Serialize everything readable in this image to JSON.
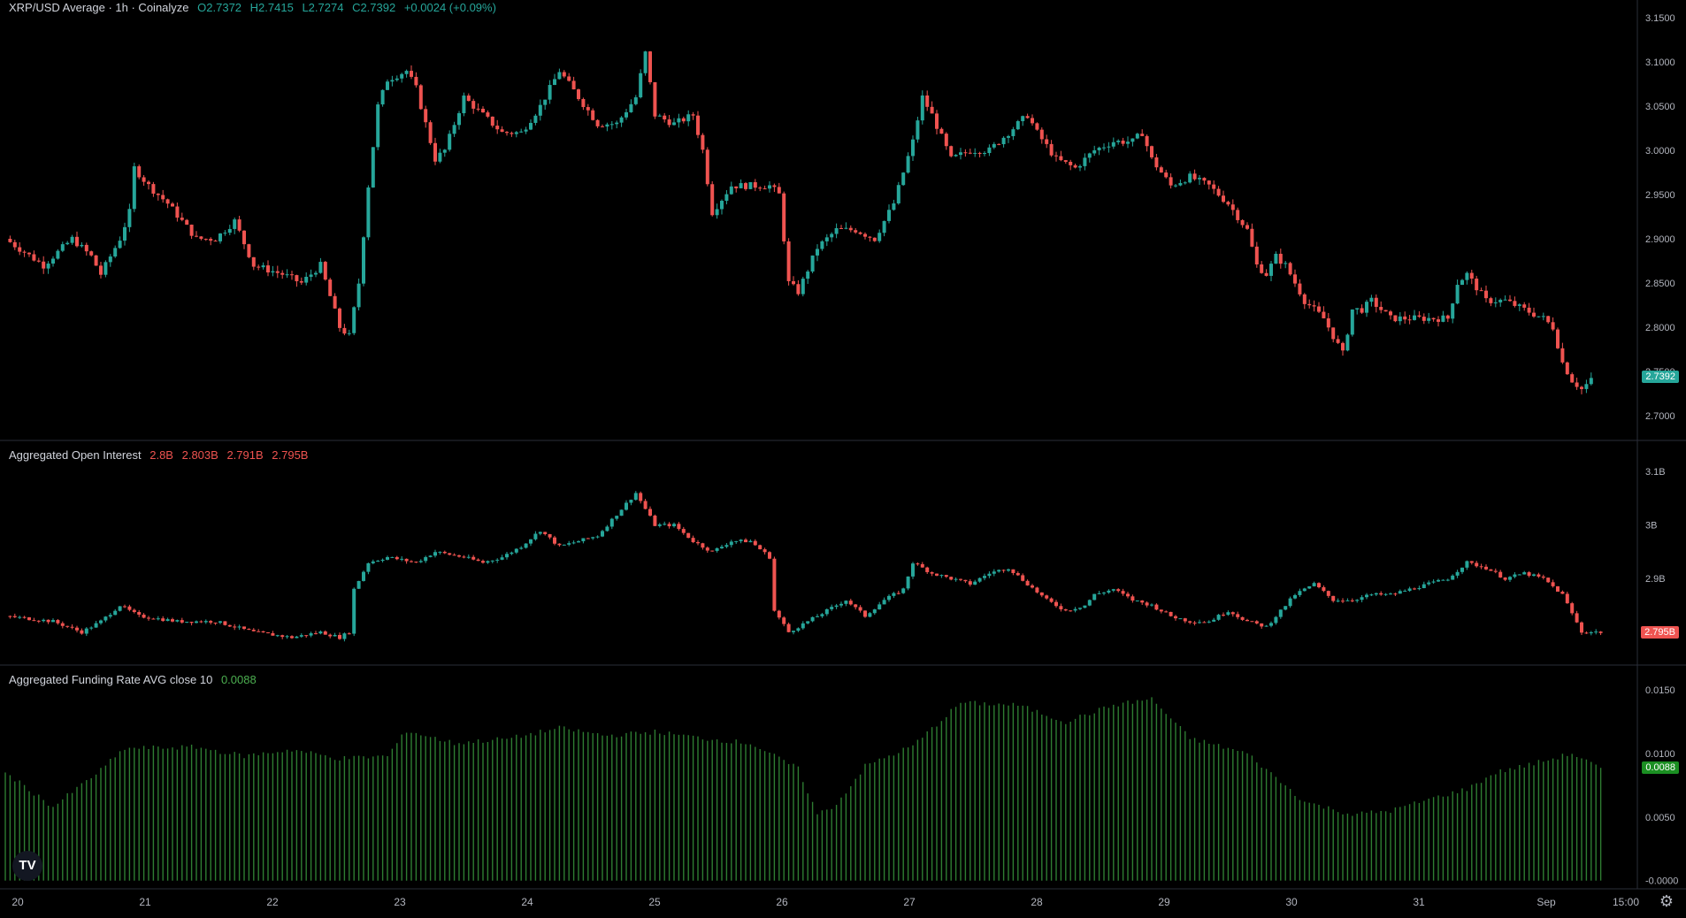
{
  "header": {
    "symbol": "XRP/USD Average · 1h · Coinalyze",
    "open": "O2.7372",
    "high": "H2.7415",
    "low": "L2.7274",
    "close": "C2.7392",
    "change": "+0.0024 (+0.09%)"
  },
  "oi_header": {
    "title": "Aggregated Open Interest",
    "v1": "2.8B",
    "v2": "2.803B",
    "v3": "2.791B",
    "v4": "2.795B"
  },
  "fr_header": {
    "title": "Aggregated Funding Rate AVG close 10",
    "value": "0.0088"
  },
  "badges": {
    "price": "2.7392",
    "oi": "2.795B",
    "fr": "0.0088"
  },
  "colors": {
    "up": "#26a69a",
    "down": "#ef5350",
    "funding": "#2e7d32",
    "bg": "#000000"
  },
  "icons": {
    "logo": "tradingview-logo-icon",
    "settings": "gear-icon"
  },
  "x_axis": {
    "labels": [
      "20",
      "21",
      "22",
      "23",
      "24",
      "25",
      "26",
      "27",
      "28",
      "29",
      "30",
      "31",
      "Sep",
      "15:00"
    ]
  },
  "chart_data": [
    {
      "type": "candlestick",
      "panel": "price",
      "ylim": [
        2.68,
        3.16
      ],
      "yticks": [
        "3.1500",
        "3.1000",
        "3.0500",
        "3.0000",
        "2.9500",
        "2.9000",
        "2.8500",
        "2.8000",
        "2.7500",
        "2.7000"
      ],
      "ytick_values": [
        3.15,
        3.1,
        3.05,
        3.0,
        2.95,
        2.9,
        2.85,
        2.8,
        2.75,
        2.7
      ],
      "anchors": [
        [
          0,
          2.9
        ],
        [
          8,
          2.87
        ],
        [
          14,
          2.9
        ],
        [
          18,
          2.88
        ],
        [
          20,
          2.86
        ],
        [
          24,
          2.9
        ],
        [
          26,
          2.93
        ],
        [
          27,
          2.98
        ],
        [
          30,
          2.96
        ],
        [
          34,
          2.94
        ],
        [
          40,
          2.9
        ],
        [
          44,
          2.9
        ],
        [
          48,
          2.92
        ],
        [
          52,
          2.87
        ],
        [
          58,
          2.86
        ],
        [
          62,
          2.85
        ],
        [
          66,
          2.87
        ],
        [
          70,
          2.8
        ],
        [
          72,
          2.79
        ],
        [
          74,
          2.85
        ],
        [
          76,
          2.96
        ],
        [
          78,
          3.05
        ],
        [
          80,
          3.08
        ],
        [
          84,
          3.09
        ],
        [
          86,
          3.07
        ],
        [
          90,
          2.99
        ],
        [
          92,
          3.0
        ],
        [
          96,
          3.06
        ],
        [
          100,
          3.04
        ],
        [
          104,
          3.02
        ],
        [
          108,
          3.02
        ],
        [
          112,
          3.05
        ],
        [
          116,
          3.09
        ],
        [
          120,
          3.06
        ],
        [
          124,
          3.03
        ],
        [
          128,
          3.03
        ],
        [
          132,
          3.06
        ],
        [
          134,
          3.11
        ],
        [
          136,
          3.04
        ],
        [
          140,
          3.03
        ],
        [
          144,
          3.04
        ],
        [
          146,
          3.0
        ],
        [
          148,
          2.93
        ],
        [
          152,
          2.96
        ],
        [
          156,
          2.96
        ],
        [
          160,
          2.96
        ],
        [
          162,
          2.95
        ],
        [
          164,
          2.85
        ],
        [
          166,
          2.84
        ],
        [
          170,
          2.89
        ],
        [
          174,
          2.91
        ],
        [
          178,
          2.91
        ],
        [
          182,
          2.9
        ],
        [
          186,
          2.94
        ],
        [
          190,
          3.01
        ],
        [
          192,
          3.06
        ],
        [
          194,
          3.04
        ],
        [
          198,
          2.99
        ],
        [
          202,
          3.0
        ],
        [
          206,
          3.0
        ],
        [
          210,
          3.02
        ],
        [
          214,
          3.04
        ],
        [
          216,
          3.02
        ],
        [
          220,
          2.99
        ],
        [
          224,
          2.98
        ],
        [
          228,
          3.0
        ],
        [
          232,
          3.01
        ],
        [
          236,
          3.01
        ],
        [
          238,
          3.02
        ],
        [
          240,
          2.99
        ],
        [
          244,
          2.96
        ],
        [
          248,
          2.97
        ],
        [
          252,
          2.96
        ],
        [
          256,
          2.94
        ],
        [
          260,
          2.91
        ],
        [
          262,
          2.87
        ],
        [
          264,
          2.86
        ],
        [
          266,
          2.88
        ],
        [
          268,
          2.87
        ],
        [
          270,
          2.85
        ],
        [
          272,
          2.83
        ],
        [
          276,
          2.81
        ],
        [
          278,
          2.79
        ],
        [
          280,
          2.77
        ],
        [
          282,
          2.82
        ],
        [
          284,
          2.82
        ],
        [
          286,
          2.83
        ],
        [
          290,
          2.81
        ],
        [
          294,
          2.81
        ],
        [
          298,
          2.81
        ],
        [
          302,
          2.81
        ],
        [
          304,
          2.85
        ],
        [
          306,
          2.86
        ],
        [
          310,
          2.83
        ],
        [
          314,
          2.83
        ],
        [
          318,
          2.82
        ],
        [
          322,
          2.81
        ],
        [
          324,
          2.8
        ],
        [
          326,
          2.76
        ],
        [
          328,
          2.74
        ],
        [
          330,
          2.73
        ],
        [
          332,
          2.74
        ]
      ],
      "last_close": 2.7392
    },
    {
      "type": "candlestick",
      "panel": "open_interest",
      "ylim": [
        2.75,
        3.13
      ],
      "yticks": [
        "3.1B",
        "3B",
        "2.9B",
        "2.8B",
        "2.7B"
      ],
      "ytick_values": [
        3.1,
        3.0,
        2.9,
        2.8,
        2.7
      ],
      "anchors": [
        [
          0,
          2.83
        ],
        [
          10,
          2.82
        ],
        [
          16,
          2.8
        ],
        [
          20,
          2.82
        ],
        [
          24,
          2.85
        ],
        [
          28,
          2.83
        ],
        [
          36,
          2.82
        ],
        [
          44,
          2.82
        ],
        [
          52,
          2.8
        ],
        [
          60,
          2.79
        ],
        [
          66,
          2.8
        ],
        [
          70,
          2.79
        ],
        [
          72,
          2.8
        ],
        [
          73,
          2.88
        ],
        [
          76,
          2.93
        ],
        [
          80,
          2.94
        ],
        [
          86,
          2.93
        ],
        [
          90,
          2.95
        ],
        [
          96,
          2.94
        ],
        [
          100,
          2.93
        ],
        [
          104,
          2.94
        ],
        [
          108,
          2.96
        ],
        [
          112,
          2.99
        ],
        [
          116,
          2.96
        ],
        [
          120,
          2.97
        ],
        [
          124,
          2.98
        ],
        [
          128,
          3.02
        ],
        [
          132,
          3.06
        ],
        [
          136,
          3.0
        ],
        [
          140,
          3.0
        ],
        [
          144,
          2.97
        ],
        [
          148,
          2.95
        ],
        [
          152,
          2.97
        ],
        [
          156,
          2.97
        ],
        [
          160,
          2.94
        ],
        [
          161,
          2.84
        ],
        [
          164,
          2.8
        ],
        [
          168,
          2.82
        ],
        [
          172,
          2.84
        ],
        [
          176,
          2.86
        ],
        [
          180,
          2.83
        ],
        [
          184,
          2.86
        ],
        [
          188,
          2.88
        ],
        [
          190,
          2.93
        ],
        [
          194,
          2.91
        ],
        [
          198,
          2.9
        ],
        [
          202,
          2.89
        ],
        [
          206,
          2.91
        ],
        [
          210,
          2.92
        ],
        [
          214,
          2.89
        ],
        [
          218,
          2.86
        ],
        [
          222,
          2.84
        ],
        [
          226,
          2.85
        ],
        [
          228,
          2.87
        ],
        [
          232,
          2.88
        ],
        [
          236,
          2.86
        ],
        [
          240,
          2.85
        ],
        [
          244,
          2.83
        ],
        [
          248,
          2.82
        ],
        [
          252,
          2.82
        ],
        [
          256,
          2.84
        ],
        [
          260,
          2.82
        ],
        [
          264,
          2.81
        ],
        [
          268,
          2.85
        ],
        [
          270,
          2.87
        ],
        [
          274,
          2.89
        ],
        [
          278,
          2.86
        ],
        [
          282,
          2.86
        ],
        [
          286,
          2.87
        ],
        [
          290,
          2.87
        ],
        [
          294,
          2.88
        ],
        [
          298,
          2.89
        ],
        [
          302,
          2.9
        ],
        [
          306,
          2.93
        ],
        [
          310,
          2.92
        ],
        [
          314,
          2.9
        ],
        [
          318,
          2.91
        ],
        [
          322,
          2.9
        ],
        [
          326,
          2.87
        ],
        [
          330,
          2.8
        ],
        [
          334,
          2.8
        ]
      ],
      "last_value": 2.795
    },
    {
      "type": "bar",
      "panel": "funding_rate",
      "ylim": [
        -0.0003,
        0.0157
      ],
      "yticks": [
        "0.0150",
        "0.0100",
        "0.0050",
        "-0.0000"
      ],
      "ytick_values": [
        0.015,
        0.01,
        0.005,
        0.0
      ],
      "anchors": [
        [
          0,
          0.0085
        ],
        [
          10,
          0.0058
        ],
        [
          20,
          0.0087
        ],
        [
          25,
          0.0104
        ],
        [
          40,
          0.0105
        ],
        [
          50,
          0.0098
        ],
        [
          60,
          0.0103
        ],
        [
          70,
          0.0096
        ],
        [
          80,
          0.0098
        ],
        [
          84,
          0.0118
        ],
        [
          94,
          0.0108
        ],
        [
          106,
          0.0112
        ],
        [
          116,
          0.012
        ],
        [
          126,
          0.0114
        ],
        [
          136,
          0.0117
        ],
        [
          146,
          0.0112
        ],
        [
          156,
          0.0108
        ],
        [
          166,
          0.0088
        ],
        [
          170,
          0.0052
        ],
        [
          174,
          0.006
        ],
        [
          180,
          0.009
        ],
        [
          190,
          0.0106
        ],
        [
          200,
          0.014
        ],
        [
          212,
          0.0138
        ],
        [
          222,
          0.0125
        ],
        [
          232,
          0.0138
        ],
        [
          240,
          0.0143
        ],
        [
          248,
          0.0112
        ],
        [
          260,
          0.01
        ],
        [
          272,
          0.0062
        ],
        [
          282,
          0.0052
        ],
        [
          290,
          0.0055
        ],
        [
          300,
          0.0066
        ],
        [
          306,
          0.0072
        ],
        [
          312,
          0.0085
        ],
        [
          320,
          0.0092
        ],
        [
          328,
          0.01
        ],
        [
          334,
          0.0088
        ]
      ],
      "last_value": 0.0088
    }
  ]
}
